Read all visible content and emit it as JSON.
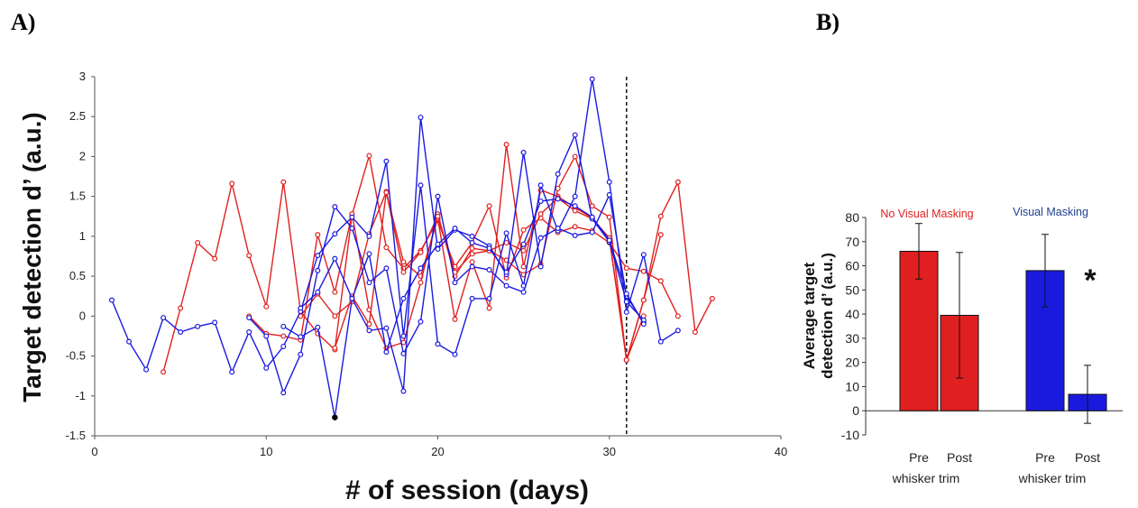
{
  "panel_labels": {
    "a": "A)",
    "b": "B)"
  },
  "colors": {
    "red": "#e02020",
    "blue": "#1a1adf",
    "black": "#000000"
  },
  "chart_data": [
    {
      "type": "line",
      "title": "",
      "xlabel": "# of session (days)",
      "ylabel": "Target detection d’ (a.u.)",
      "xlim": [
        0,
        40
      ],
      "ylim": [
        -1.5,
        3
      ],
      "xticks": [
        0,
        10,
        20,
        30,
        40
      ],
      "yticks": [
        -1.5,
        -1,
        -0.5,
        0,
        0.5,
        1,
        1.5,
        2,
        2.5,
        3
      ],
      "vline_x": 31,
      "series": [
        {
          "color": "red",
          "x": [
            4,
            5,
            6,
            7,
            8,
            9,
            10,
            11,
            12,
            13,
            14,
            15,
            16,
            17,
            18,
            19,
            20,
            21,
            22,
            23,
            24,
            25,
            26,
            27,
            28,
            29,
            30,
            31,
            32,
            33,
            34
          ],
          "y": [
            -0.7,
            0.1,
            0.92,
            0.72,
            1.66,
            0.76,
            0.12,
            1.68,
            0.06,
            -0.22,
            -0.42,
            1.27,
            2.01,
            0.86,
            0.6,
            0.82,
            1.2,
            0.62,
            0.92,
            1.38,
            0.48,
            1.08,
            1.23,
            1.05,
            1.12,
            1.07,
            0.92,
            0.6,
            0.56,
            0.44,
            0.0
          ]
        },
        {
          "color": "red",
          "x": [
            12,
            13,
            14,
            15,
            16,
            17,
            18,
            19,
            20,
            21,
            22,
            23,
            24,
            25,
            26,
            27,
            28,
            29,
            30,
            31,
            32
          ],
          "y": [
            0.0,
            0.28,
            0.0,
            0.18,
            1.03,
            1.56,
            0.68,
            0.5,
            1.22,
            -0.04,
            0.68,
            0.1,
            2.15,
            0.62,
            1.58,
            1.5,
            1.36,
            1.23,
            0.97,
            -0.55,
            0.0
          ]
        },
        {
          "color": "red",
          "x": [
            9,
            10,
            11,
            12,
            13,
            14,
            15,
            16,
            17,
            18,
            19,
            20,
            21,
            22,
            23,
            24,
            25,
            26,
            27,
            28,
            29,
            30,
            31,
            32,
            33,
            34,
            35,
            36
          ],
          "y": [
            0.0,
            -0.22,
            -0.25,
            -0.3,
            1.02,
            0.3,
            1.28,
            0.08,
            -0.4,
            -0.33,
            0.42,
            1.28,
            0.5,
            0.85,
            0.82,
            0.7,
            0.52,
            0.65,
            1.6,
            2.0,
            1.38,
            1.24,
            -0.55,
            0.2,
            1.25,
            1.68,
            -0.2,
            0.22
          ]
        },
        {
          "color": "red",
          "x": [
            14,
            15,
            16,
            17,
            18,
            19,
            20,
            21,
            22,
            23,
            24,
            25,
            26,
            27,
            28,
            29,
            30,
            31,
            32,
            33
          ],
          "y": [
            -0.4,
            0.25,
            -0.1,
            1.55,
            0.55,
            0.8,
            1.25,
            0.55,
            0.78,
            0.82,
            0.92,
            0.82,
            1.28,
            1.48,
            1.32,
            1.22,
            0.98,
            -0.55,
            0.2,
            1.02
          ]
        },
        {
          "color": "blue",
          "x": [
            1,
            2,
            3,
            4,
            5,
            6,
            7,
            8,
            9,
            10,
            11,
            12,
            13,
            14,
            15,
            16,
            17,
            18,
            19,
            20,
            21,
            22,
            23,
            24,
            25,
            26,
            27,
            28,
            29,
            30,
            31,
            32,
            33,
            34
          ],
          "y": [
            0.2,
            -0.32,
            -0.67,
            -0.02,
            -0.2,
            -0.13,
            -0.08,
            -0.7,
            -0.2,
            -0.65,
            -0.38,
            0.06,
            0.76,
            1.03,
            1.24,
            1.0,
            1.94,
            -0.25,
            1.64,
            -0.35,
            -0.48,
            0.22,
            0.22,
            1.04,
            0.38,
            1.64,
            1.07,
            1.5,
            2.97,
            1.68,
            0.05,
            0.77,
            -0.32,
            -0.18
          ]
        },
        {
          "color": "blue",
          "x": [
            9,
            10,
            11,
            12,
            13,
            14,
            15,
            16,
            17,
            18,
            19,
            20,
            21,
            22,
            23,
            24,
            25,
            26,
            27,
            28,
            29,
            30,
            31,
            32
          ],
          "y": [
            -0.02,
            -0.25,
            -0.96,
            -0.48,
            0.57,
            1.37,
            1.1,
            0.42,
            0.6,
            -0.47,
            -0.07,
            1.5,
            0.42,
            0.62,
            0.58,
            0.38,
            0.3,
            0.98,
            1.1,
            1.01,
            1.05,
            1.52,
            0.25,
            -0.08
          ]
        },
        {
          "color": "blue",
          "x": [
            11,
            12,
            13,
            14,
            15,
            16,
            17,
            18,
            19,
            20,
            21,
            22,
            23,
            24,
            25,
            26,
            27,
            28,
            29,
            30,
            31,
            32
          ],
          "y": [
            -0.13,
            -0.26,
            -0.14,
            -1.27,
            0.22,
            -0.18,
            -0.15,
            -0.94,
            2.49,
            0.84,
            1.08,
            1.0,
            0.88,
            0.52,
            2.05,
            0.62,
            1.78,
            2.27,
            1.22,
            0.93,
            0.18,
            -0.05
          ]
        },
        {
          "color": "blue",
          "x": [
            12,
            13,
            14,
            15,
            16,
            17,
            18,
            19,
            20,
            21,
            22,
            23,
            24,
            25,
            26,
            27,
            28,
            29,
            30,
            31,
            32
          ],
          "y": [
            0.1,
            0.3,
            0.72,
            0.22,
            0.78,
            -0.45,
            0.22,
            0.6,
            0.9,
            1.1,
            0.92,
            0.85,
            0.55,
            0.9,
            1.44,
            1.47,
            1.38,
            1.24,
            0.95,
            0.28,
            -0.1
          ]
        }
      ],
      "highlight_point": {
        "x": 14,
        "y": -1.27,
        "color": "black"
      }
    },
    {
      "type": "bar",
      "title": "",
      "ylabel": "Average target detection d’ (a.u.)",
      "ylim": [
        -10,
        80
      ],
      "yticks": [
        -10,
        0,
        10,
        20,
        30,
        40,
        50,
        60,
        70,
        80
      ],
      "groups": [
        {
          "label": "No Visual Masking",
          "color": "red"
        },
        {
          "label": "Visual Masking",
          "color": "blue"
        }
      ],
      "bars": [
        {
          "group": 0,
          "label": "Pre",
          "value": 66,
          "err": 11.5
        },
        {
          "group": 0,
          "label": "Post",
          "value": 39.5,
          "err": 26
        },
        {
          "group": 1,
          "label": "Pre",
          "value": 58,
          "err": 15
        },
        {
          "group": 1,
          "label": "Post",
          "value": 6.8,
          "err": 12
        }
      ],
      "bottom_labels": [
        "whisker trim",
        "whisker trim"
      ],
      "annotation": "*"
    }
  ]
}
